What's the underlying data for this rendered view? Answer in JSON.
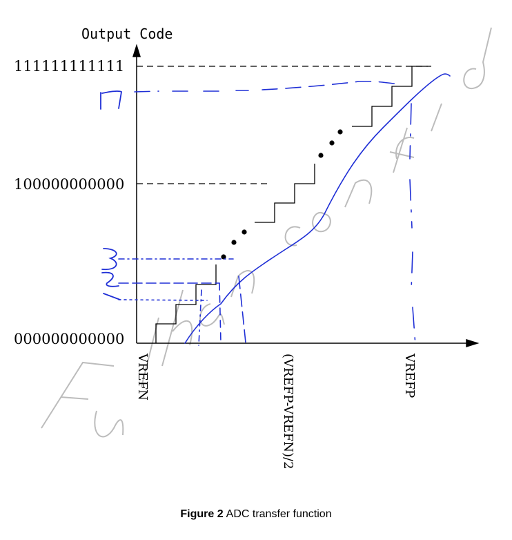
{
  "diagram": {
    "axis_title_y": "Output Code",
    "y_labels": {
      "top": "111111111111",
      "mid": "100000000000",
      "bottom": "000000000000"
    },
    "x_labels": {
      "left": "VREFN",
      "mid": "(VREFP-VREFN)/2",
      "right": "VREFP"
    },
    "watermark": "Fullhan confidential",
    "handwritten": [
      "7",
      "3",
      "2",
      "1"
    ],
    "colors": {
      "ink": "#000000",
      "annotation": "#1f2fd6",
      "watermark": "#b5b5b5"
    }
  },
  "caption": {
    "label": "Figure 2",
    "text": "ADC transfer function"
  }
}
